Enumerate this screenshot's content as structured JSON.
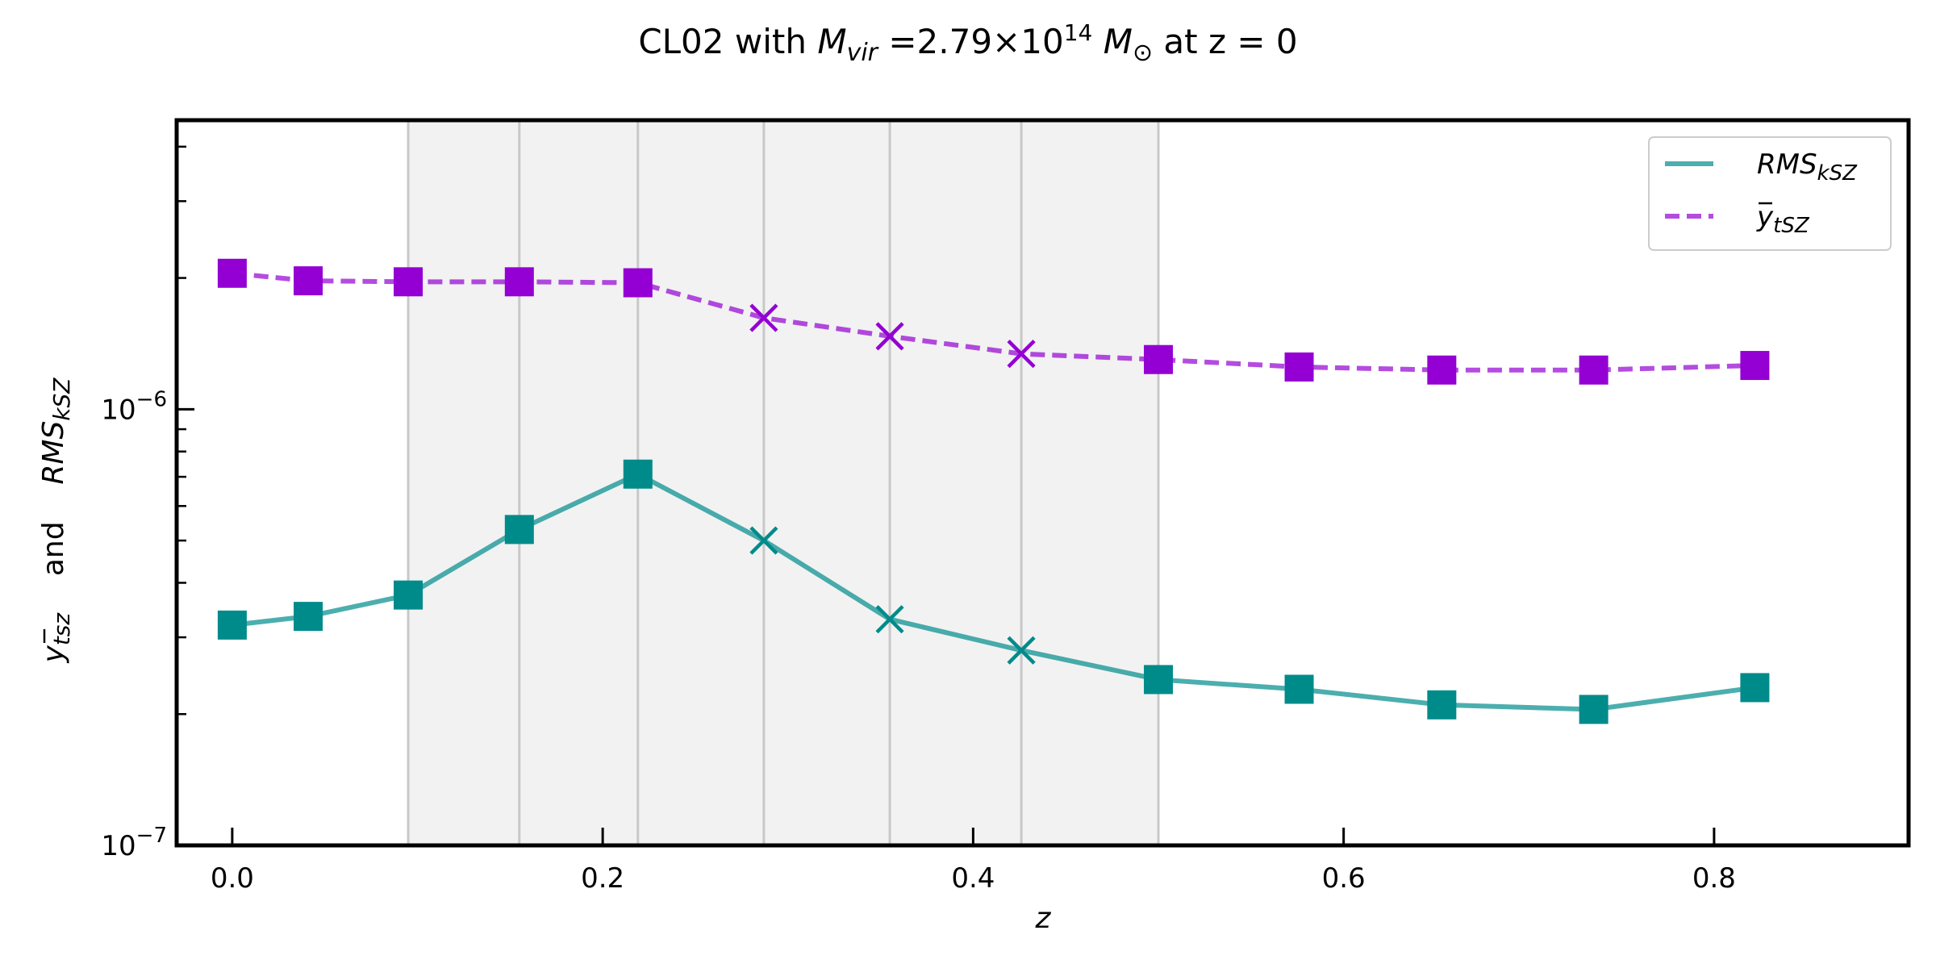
{
  "chart_data": {
    "type": "line",
    "title": {
      "prefix": "CL02 with ",
      "mvir_base": "M",
      "mvir_sub": "vir",
      "equals": " =2.79×10",
      "exponent": "14",
      "msun_base": " M",
      "msun_sub": "⊙",
      "suffix": " at z = 0"
    },
    "xlabel": "z",
    "ylabel": {
      "part1_base": "y",
      "part1_sub": "tsz",
      "and": "and",
      "part2_base": "RMS",
      "part2_sub": "kSZ"
    },
    "xlim": [
      -0.03,
      0.905
    ],
    "ylim": [
      1e-07,
      4.6e-06
    ],
    "yscale": "log",
    "x_ticks": [
      0.0,
      0.2,
      0.4,
      0.6,
      0.8
    ],
    "x_tick_labels": [
      "0.0",
      "0.2",
      "0.4",
      "0.6",
      "0.8"
    ],
    "y_major_ticks": [
      {
        "value": 1e-07,
        "base": "10",
        "exp": "−7"
      },
      {
        "value": 1e-06,
        "base": "10",
        "exp": "−6"
      }
    ],
    "shaded_region": {
      "x_start": 0.095,
      "x_end": 0.5,
      "color": "#f2f2f2"
    },
    "vertical_lines": [
      0.095,
      0.155,
      0.219,
      0.287,
      0.355,
      0.426,
      0.5
    ],
    "x": [
      0.0,
      0.041,
      0.095,
      0.155,
      0.219,
      0.287,
      0.355,
      0.426,
      0.5,
      0.576,
      0.653,
      0.735,
      0.822
    ],
    "markers": [
      "square",
      "square",
      "square",
      "square",
      "square",
      "x",
      "x",
      "x",
      "square",
      "square",
      "square",
      "square",
      "square"
    ],
    "series": [
      {
        "name": {
          "base": "RMS",
          "sub": "kSZ"
        },
        "color": "#008b8b",
        "line_style": "solid",
        "values": [
          3.2e-07,
          3.35e-07,
          3.75e-07,
          5.3e-07,
          7.1e-07,
          5e-07,
          3.3e-07,
          2.8e-07,
          2.4e-07,
          2.28e-07,
          2.1e-07,
          2.05e-07,
          2.3e-07
        ]
      },
      {
        "name": {
          "base": "y",
          "sub": "tSZ"
        },
        "color": "#9400d3",
        "line_style": "dashed",
        "values": [
          2.05e-06,
          1.97e-06,
          1.96e-06,
          1.96e-06,
          1.95e-06,
          1.62e-06,
          1.47e-06,
          1.34e-06,
          1.3e-06,
          1.25e-06,
          1.23e-06,
          1.23e-06,
          1.26e-06
        ]
      }
    ],
    "legend_position": "top-right",
    "grid": false
  }
}
